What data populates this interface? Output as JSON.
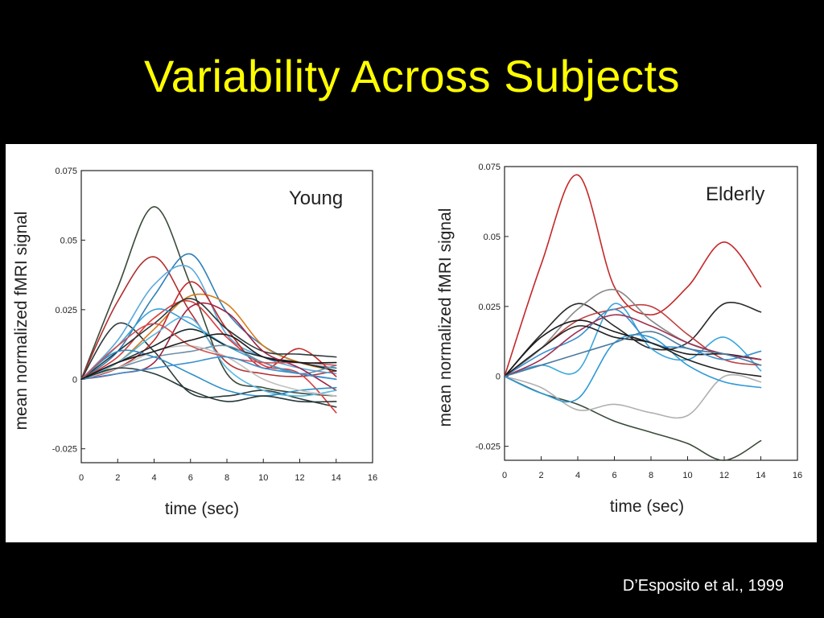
{
  "slide": {
    "title": "Variability Across Subjects",
    "citation": "D’Esposito et al., 1999"
  },
  "chart_data": [
    {
      "type": "line",
      "panel_label": "Young",
      "xlabel": "time (sec)",
      "ylabel": "mean normalized fMRI signal",
      "xlim": [
        0,
        16
      ],
      "ylim": [
        -0.03,
        0.075
      ],
      "x_ticks": [
        "0",
        "2",
        "4",
        "6",
        "8",
        "10",
        "12",
        "14",
        "16"
      ],
      "y_ticks": [
        {
          "v": 0.075,
          "label": "0.075"
        },
        {
          "v": 0.05,
          "label": "0.05"
        },
        {
          "v": 0.025,
          "label": "0.025"
        },
        {
          "v": 0,
          "label": "0"
        },
        {
          "v": -0.025,
          "label": "-0.025"
        }
      ],
      "x": [
        0,
        2,
        4,
        6,
        8,
        10,
        12,
        14
      ],
      "series": [
        {
          "color": "#3a4a3a",
          "values": [
            0,
            0.033,
            0.062,
            0.034,
            0.002,
            -0.003,
            -0.005,
            -0.006
          ]
        },
        {
          "color": "#b03030",
          "values": [
            0,
            0.028,
            0.044,
            0.024,
            0.006,
            0.002,
            0.001,
            0.003
          ]
        },
        {
          "color": "#2a3a3a",
          "values": [
            0,
            0.02,
            0.01,
            -0.005,
            -0.006,
            -0.004,
            -0.007,
            -0.01
          ]
        },
        {
          "color": "#2f7fb8",
          "values": [
            0,
            0.01,
            0.03,
            0.045,
            0.024,
            0.012,
            0.006,
            0.004
          ]
        },
        {
          "color": "#5aa9dc",
          "values": [
            0,
            0.014,
            0.034,
            0.04,
            0.016,
            0.008,
            0.004,
            0.002
          ]
        },
        {
          "color": "#d77a1a",
          "values": [
            0,
            0.006,
            0.018,
            0.03,
            0.027,
            0.012,
            0.006,
            0.003
          ]
        },
        {
          "color": "#c42828",
          "values": [
            0,
            0.004,
            0.014,
            0.035,
            0.018,
            0.004,
            0.011,
            0.001
          ]
        },
        {
          "color": "#d93a3a",
          "values": [
            0,
            0.008,
            0.022,
            0.028,
            0.015,
            0.005,
            0.002,
            -0.012
          ]
        },
        {
          "color": "#2a3a3a",
          "values": [
            0,
            0.01,
            0.02,
            0.029,
            0.018,
            0.01,
            0.009,
            0.008
          ]
        },
        {
          "color": "#3aa0d8",
          "values": [
            0,
            0.012,
            0.025,
            0.02,
            0.012,
            0.006,
            0.002,
            0.0
          ]
        },
        {
          "color": "#1a2a2a",
          "values": [
            0,
            0.006,
            0.012,
            0.018,
            0.012,
            0.008,
            0.006,
            0.003
          ]
        },
        {
          "color": "#6a90a8",
          "values": [
            0,
            0.004,
            0.008,
            0.01,
            0.012,
            0.006,
            0.002,
            0.005
          ]
        },
        {
          "color": "#a02040",
          "values": [
            0,
            0.002,
            0.006,
            0.026,
            0.024,
            0.01,
            0.004,
            -0.004
          ]
        },
        {
          "color": "#58b8e0",
          "values": [
            0,
            0.006,
            0.016,
            0.022,
            0.004,
            -0.004,
            -0.006,
            -0.004
          ]
        },
        {
          "color": "#2e8fc9",
          "values": [
            0,
            0.01,
            0.008,
            0.002,
            -0.004,
            -0.006,
            -0.004,
            -0.003
          ]
        },
        {
          "color": "#c0c0c0",
          "values": [
            0,
            0.004,
            0.01,
            0.012,
            0.008,
            0.0,
            -0.004,
            -0.006
          ]
        },
        {
          "color": "#283838",
          "values": [
            0,
            0.004,
            0.002,
            -0.004,
            -0.008,
            -0.006,
            -0.008,
            -0.008
          ]
        },
        {
          "color": "#d05050",
          "values": [
            0,
            0.012,
            0.02,
            0.012,
            0.008,
            0.006,
            0.006,
            0.005
          ]
        },
        {
          "color": "#3b8fd0",
          "values": [
            0,
            0.002,
            0.004,
            0.006,
            0.008,
            0.004,
            0.002,
            0.0
          ]
        },
        {
          "color": "#1a1a1a",
          "values": [
            0,
            0.006,
            0.01,
            0.014,
            0.016,
            0.008,
            0.006,
            0.006
          ]
        }
      ]
    },
    {
      "type": "line",
      "panel_label": "Elderly",
      "xlabel": "time (sec)",
      "ylabel": "mean normalized fMRI signal",
      "xlim": [
        0,
        16
      ],
      "ylim": [
        -0.03,
        0.075
      ],
      "x_ticks": [
        "0",
        "2",
        "4",
        "6",
        "8",
        "10",
        "12",
        "14",
        "16"
      ],
      "y_ticks": [
        {
          "v": 0.075,
          "label": "0.075"
        },
        {
          "v": 0.05,
          "label": "0.05"
        },
        {
          "v": 0.025,
          "label": "0.025"
        },
        {
          "v": 0,
          "label": "0"
        },
        {
          "v": -0.025,
          "label": "-0.025"
        }
      ],
      "x": [
        0,
        2,
        4,
        6,
        8,
        10,
        12,
        14
      ],
      "series": [
        {
          "color": "#c42828",
          "values": [
            0,
            0.04,
            0.072,
            0.032,
            0.022,
            0.032,
            0.048,
            0.032
          ]
        },
        {
          "color": "#2a2a2a",
          "values": [
            0,
            0.015,
            0.026,
            0.018,
            0.01,
            0.012,
            0.026,
            0.023
          ]
        },
        {
          "color": "#3a4a3a",
          "values": [
            0,
            -0.006,
            -0.01,
            -0.016,
            -0.02,
            -0.024,
            -0.03,
            -0.023
          ]
        },
        {
          "color": "#b0b0b0",
          "values": [
            0,
            -0.004,
            -0.012,
            -0.01,
            -0.013,
            -0.014,
            0.0,
            -0.002
          ]
        },
        {
          "color": "#2e9ad6",
          "values": [
            0,
            -0.006,
            -0.008,
            0.012,
            0.014,
            0.004,
            -0.002,
            -0.004
          ]
        },
        {
          "color": "#3aa6dc",
          "values": [
            0,
            0.004,
            0.002,
            0.026,
            0.01,
            0.006,
            0.014,
            0.002
          ]
        },
        {
          "color": "#c04040",
          "values": [
            0,
            0.01,
            0.02,
            0.024,
            0.025,
            0.015,
            0.006,
            0.004
          ]
        },
        {
          "color": "#888888",
          "values": [
            0,
            0.01,
            0.024,
            0.031,
            0.02,
            0.012,
            0.008,
            0.006
          ]
        },
        {
          "color": "#1a1a1a",
          "values": [
            0,
            0.014,
            0.02,
            0.016,
            0.012,
            0.008,
            0.008,
            0.006
          ]
        },
        {
          "color": "#3a8fd0",
          "values": [
            0,
            0.008,
            0.014,
            0.024,
            0.012,
            0.01,
            0.006,
            0.009
          ]
        },
        {
          "color": "#a03050",
          "values": [
            0,
            0.006,
            0.016,
            0.022,
            0.018,
            0.012,
            0.008,
            0.006
          ]
        },
        {
          "color": "#222222",
          "values": [
            0,
            0.01,
            0.018,
            0.014,
            0.012,
            0.006,
            0.002,
            0.0
          ]
        },
        {
          "color": "#4a7aa0",
          "values": [
            0,
            0.004,
            0.008,
            0.012,
            0.016,
            0.01,
            0.008,
            0.004
          ]
        }
      ]
    }
  ]
}
